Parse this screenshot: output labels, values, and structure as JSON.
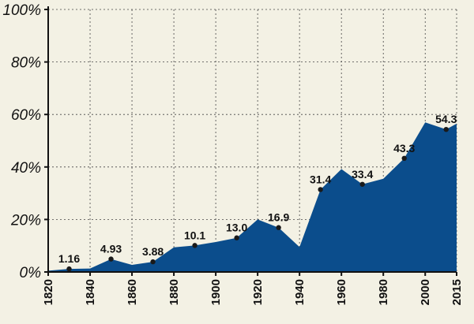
{
  "chart_data": {
    "type": "area",
    "title": "",
    "xlabel": "",
    "ylabel": "",
    "xlim": [
      1820,
      2015
    ],
    "ylim": [
      0,
      100
    ],
    "grid": true,
    "colors": {
      "area": "#0b4d8c",
      "background": "#f3f1e4",
      "grid": "#444444",
      "marker": "#1a1a1a"
    },
    "y_ticks": [
      0,
      20,
      40,
      60,
      80,
      100
    ],
    "y_tick_labels": [
      "0%",
      "20%",
      "40%",
      "60%",
      "80%",
      "100%"
    ],
    "x_ticks": [
      1820,
      1840,
      1860,
      1880,
      1900,
      1920,
      1940,
      1960,
      1980,
      2000,
      2015
    ],
    "x_tick_labels": [
      "1820",
      "1840",
      "1860",
      "1880",
      "1900",
      "1920",
      "1940",
      "1960",
      "1980",
      "2000",
      "2015"
    ],
    "series": [
      {
        "x": [
          1820,
          1830,
          1840,
          1850,
          1860,
          1870,
          1880,
          1890,
          1900,
          1910,
          1920,
          1930,
          1940,
          1950,
          1960,
          1970,
          1980,
          1990,
          2000,
          2010,
          2015
        ],
        "values": [
          0.5,
          1.16,
          1.3,
          4.93,
          2.7,
          3.88,
          9.4,
          10.1,
          11.4,
          13.0,
          20.0,
          16.9,
          9.5,
          31.4,
          39.2,
          33.4,
          35.5,
          43.3,
          57.0,
          54.3,
          56.5
        ]
      }
    ],
    "labeled_points": [
      {
        "x": 1830,
        "y": 1.16,
        "label": "1.16"
      },
      {
        "x": 1850,
        "y": 4.93,
        "label": "4.93"
      },
      {
        "x": 1870,
        "y": 3.88,
        "label": "3.88"
      },
      {
        "x": 1890,
        "y": 10.1,
        "label": "10.1"
      },
      {
        "x": 1910,
        "y": 13.0,
        "label": "13.0"
      },
      {
        "x": 1930,
        "y": 16.9,
        "label": "16.9"
      },
      {
        "x": 1950,
        "y": 31.4,
        "label": "31.4"
      },
      {
        "x": 1970,
        "y": 33.4,
        "label": "33.4"
      },
      {
        "x": 1990,
        "y": 43.3,
        "label": "43.3"
      },
      {
        "x": 2010,
        "y": 54.3,
        "label": "54.3"
      }
    ]
  }
}
